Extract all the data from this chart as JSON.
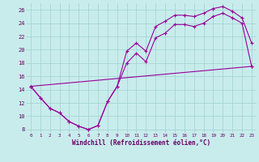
{
  "xlabel": "Windchill (Refroidissement éolien,°C)",
  "bg_color": "#c8ecec",
  "line_color": "#990099",
  "xlim": [
    -0.5,
    23.5
  ],
  "ylim": [
    7.5,
    27.0
  ],
  "xticks": [
    0,
    1,
    2,
    3,
    4,
    5,
    6,
    7,
    8,
    9,
    10,
    11,
    12,
    13,
    14,
    15,
    16,
    17,
    18,
    19,
    20,
    21,
    22,
    23
  ],
  "yticks": [
    8,
    10,
    12,
    14,
    16,
    18,
    20,
    22,
    24,
    26
  ],
  "line1_x": [
    0,
    1,
    2,
    3,
    4,
    5,
    6,
    7,
    8,
    9,
    10,
    11,
    12,
    13,
    14,
    15,
    16,
    17,
    18,
    19,
    20,
    21,
    22,
    23
  ],
  "line1_y": [
    14.5,
    12.8,
    11.2,
    10.5,
    9.2,
    8.5,
    8.0,
    8.6,
    12.2,
    14.5,
    19.8,
    21.0,
    19.8,
    23.5,
    24.3,
    25.2,
    25.2,
    25.0,
    25.5,
    26.2,
    26.5,
    25.8,
    24.8,
    21.0
  ],
  "line2_x": [
    0,
    1,
    2,
    3,
    4,
    5,
    6,
    7,
    8,
    9,
    10,
    11,
    12,
    13,
    14,
    15,
    16,
    17,
    18,
    19,
    20,
    21,
    22,
    23
  ],
  "line2_y": [
    14.5,
    12.8,
    11.2,
    10.5,
    9.2,
    8.5,
    8.0,
    8.6,
    12.2,
    14.5,
    18.0,
    19.5,
    18.2,
    21.8,
    22.5,
    23.8,
    23.8,
    23.5,
    24.0,
    25.0,
    25.5,
    24.8,
    24.0,
    17.5
  ],
  "line3_x": [
    0,
    23
  ],
  "line3_y": [
    14.5,
    17.5
  ],
  "grid_color": "#a0d0d0",
  "font_color": "#660066",
  "grid_linewidth": 0.5
}
